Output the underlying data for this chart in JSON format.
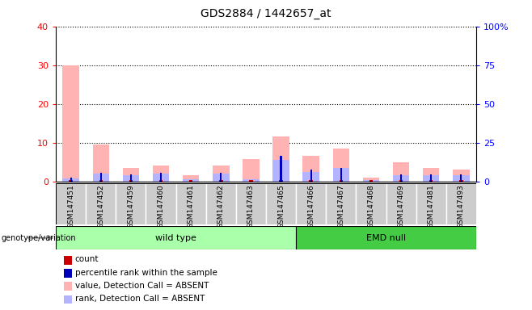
{
  "title": "GDS2884 / 1442657_at",
  "samples": [
    "GSM147451",
    "GSM147452",
    "GSM147459",
    "GSM147460",
    "GSM147461",
    "GSM147462",
    "GSM147463",
    "GSM147465",
    "GSM147466",
    "GSM147467",
    "GSM147468",
    "GSM147469",
    "GSM147481",
    "GSM147493"
  ],
  "count_values": [
    0.35,
    0.35,
    0.35,
    0.35,
    0.35,
    0.35,
    0.35,
    0.35,
    0.35,
    0.35,
    0.35,
    0.35,
    0.35,
    0.35
  ],
  "percentile_rank_left": [
    0.9,
    2.3,
    1.8,
    2.3,
    0.0,
    2.3,
    0.0,
    6.5,
    3.0,
    3.5,
    0.0,
    1.8,
    1.8,
    1.8
  ],
  "value_absent": [
    30.0,
    9.5,
    3.5,
    4.0,
    1.5,
    4.0,
    5.8,
    11.5,
    6.5,
    8.5,
    1.0,
    5.0,
    3.5,
    3.0
  ],
  "rank_absent": [
    0.8,
    2.0,
    1.5,
    2.0,
    0.5,
    2.0,
    0.5,
    5.5,
    2.5,
    3.5,
    0.3,
    1.5,
    1.5,
    1.5
  ],
  "wild_type_count": 8,
  "emd_null_count": 6,
  "ylim_left": [
    0,
    40
  ],
  "ylim_right": [
    0,
    100
  ],
  "yticks_left": [
    0,
    10,
    20,
    30,
    40
  ],
  "yticks_right": [
    0,
    25,
    50,
    75,
    100
  ],
  "ytick_labels_right": [
    "0",
    "25",
    "50",
    "75",
    "100%"
  ],
  "color_count": "#cc0000",
  "color_percentile": "#0000bb",
  "color_value_absent": "#ffb3b3",
  "color_rank_absent": "#b3b3ff",
  "color_wild_type_bg": "#aaffaa",
  "color_emd_null_bg": "#44cc44",
  "color_sample_bg": "#cccccc",
  "color_grid": "#000000",
  "legend_items": [
    {
      "color": "#cc0000",
      "label": "count"
    },
    {
      "color": "#0000bb",
      "label": "percentile rank within the sample"
    },
    {
      "color": "#ffb3b3",
      "label": "value, Detection Call = ABSENT"
    },
    {
      "color": "#b3b3ff",
      "label": "rank, Detection Call = ABSENT"
    }
  ]
}
